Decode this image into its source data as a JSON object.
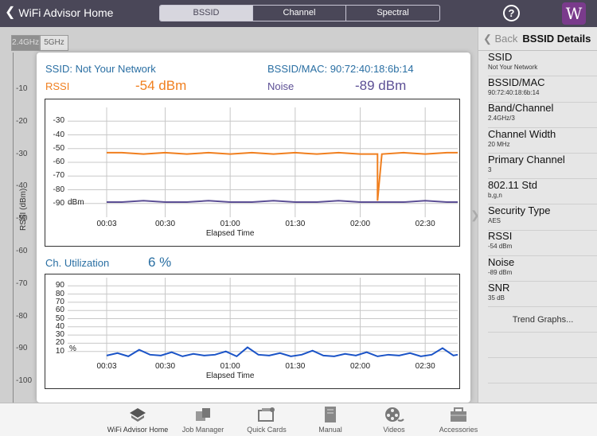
{
  "topbar": {
    "back_label": "WiFi Advisor Home",
    "segments": [
      "BSSID",
      "Channel",
      "Spectral"
    ],
    "active_segment": "BSSID",
    "help_glyph": "?",
    "logo_glyph": "W"
  },
  "background": {
    "band_tabs": [
      "2.4GHz",
      "5GHz"
    ],
    "y_ticks": [
      "-10",
      "-20",
      "-30",
      "-40",
      "-50",
      "-60",
      "-70",
      "-80",
      "-90",
      "-100"
    ],
    "y_label": "RSSI (dBm)"
  },
  "popup": {
    "ssid_text": "SSID: Not Your Network",
    "bssid_text": "BSSID/MAC: 90:72:40:18:6b:14",
    "rssi_label": "RSSI",
    "rssi_value": "-54 dBm",
    "noise_label": "Noise",
    "noise_value": "-89 dBm",
    "util_label": "Ch. Utilization",
    "util_value": "6 %"
  },
  "chart_data": [
    {
      "type": "line",
      "title": "",
      "ylabel": "dBm",
      "xlabel": "Elapsed Time",
      "ylim": [
        -100,
        -20
      ],
      "y_ticks": [
        -30,
        -40,
        -50,
        -60,
        -70,
        -80,
        -90
      ],
      "x_ticks": [
        "00:03",
        "00:30",
        "01:00",
        "01:30",
        "02:00",
        "02:30"
      ],
      "x_seconds": [
        3,
        30,
        60,
        90,
        120,
        150
      ],
      "xlim": [
        -15,
        165
      ],
      "series": [
        {
          "name": "RSSI",
          "color": "#f07f1f",
          "x": [
            3,
            10,
            20,
            30,
            40,
            50,
            60,
            70,
            80,
            90,
            100,
            110,
            120,
            125,
            128,
            128,
            130,
            140,
            150,
            160,
            165
          ],
          "y": [
            -53,
            -53,
            -54,
            -53,
            -54,
            -53,
            -54,
            -53,
            -54,
            -53,
            -54,
            -53,
            -54,
            -54,
            -54,
            -88,
            -54,
            -53,
            -54,
            -53,
            -53
          ]
        },
        {
          "name": "Noise",
          "color": "#5c4f95",
          "x": [
            3,
            10,
            20,
            30,
            40,
            50,
            60,
            70,
            80,
            90,
            100,
            110,
            120,
            130,
            140,
            150,
            160,
            165
          ],
          "y": [
            -89,
            -89,
            -88,
            -89,
            -89,
            -88,
            -89,
            -89,
            -88,
            -89,
            -89,
            -88,
            -89,
            -89,
            -89,
            -88,
            -89,
            -89
          ]
        }
      ]
    },
    {
      "type": "line",
      "title": "",
      "ylabel": "%",
      "xlabel": "Elapsed Time",
      "ylim": [
        0,
        100
      ],
      "y_ticks": [
        10,
        20,
        30,
        40,
        50,
        60,
        70,
        80,
        90
      ],
      "x_ticks": [
        "00:03",
        "00:30",
        "01:00",
        "01:30",
        "02:00",
        "02:30"
      ],
      "x_seconds": [
        3,
        30,
        60,
        90,
        120,
        150
      ],
      "xlim": [
        -15,
        165
      ],
      "series": [
        {
          "name": "Ch. Utilization",
          "color": "#1a53c7",
          "x": [
            3,
            8,
            13,
            18,
            23,
            28,
            33,
            38,
            43,
            48,
            53,
            58,
            63,
            68,
            73,
            78,
            83,
            88,
            93,
            98,
            103,
            108,
            113,
            118,
            123,
            128,
            133,
            138,
            143,
            148,
            153,
            158,
            163,
            165
          ],
          "y": [
            5,
            8,
            4,
            12,
            6,
            5,
            9,
            4,
            7,
            5,
            6,
            10,
            4,
            15,
            6,
            5,
            8,
            4,
            6,
            11,
            5,
            4,
            7,
            5,
            9,
            4,
            6,
            5,
            8,
            4,
            6,
            14,
            5,
            6
          ]
        }
      ]
    }
  ],
  "details": {
    "back_label": "Back",
    "title": "BSSID Details",
    "items": [
      {
        "label": "SSID",
        "value": "Not Your Network"
      },
      {
        "label": "BSSID/MAC",
        "value": "90:72:40:18:6b:14"
      },
      {
        "label": "Band/Channel",
        "value": "2.4GHz/3"
      },
      {
        "label": "Channel Width",
        "value": "20 MHz"
      },
      {
        "label": "Primary Channel",
        "value": "3"
      },
      {
        "label": "802.11 Std",
        "value": "b,g,n"
      },
      {
        "label": "Security Type",
        "value": "AES"
      },
      {
        "label": "RSSI",
        "value": "-54 dBm"
      },
      {
        "label": "Noise",
        "value": "-89 dBm"
      },
      {
        "label": "SNR",
        "value": "35 dB"
      }
    ],
    "trend_link": "Trend Graphs..."
  },
  "tabbar": {
    "items": [
      {
        "label": "WiFi Advisor Home",
        "icon": "home-icon"
      },
      {
        "label": "Job Manager",
        "icon": "job-manager-icon"
      },
      {
        "label": "Quick Cards",
        "icon": "quick-cards-icon"
      },
      {
        "label": "Manual",
        "icon": "manual-icon"
      },
      {
        "label": "Videos",
        "icon": "videos-icon"
      },
      {
        "label": "Accessories",
        "icon": "accessories-icon"
      }
    ]
  }
}
